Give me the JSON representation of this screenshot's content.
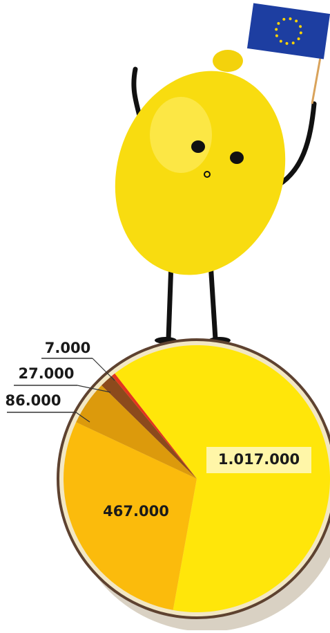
{
  "chart_data": {
    "type": "pie",
    "values": [
      1017000,
      467000,
      86000,
      27000,
      7000
    ],
    "value_labels": [
      "1.017.000",
      "467.000",
      "86.000",
      "27.000",
      "7.000"
    ],
    "colors": [
      "#ffe60a",
      "#fbbb0c",
      "#dc9a0c",
      "#8c4a1c",
      "#e2361e"
    ]
  }
}
